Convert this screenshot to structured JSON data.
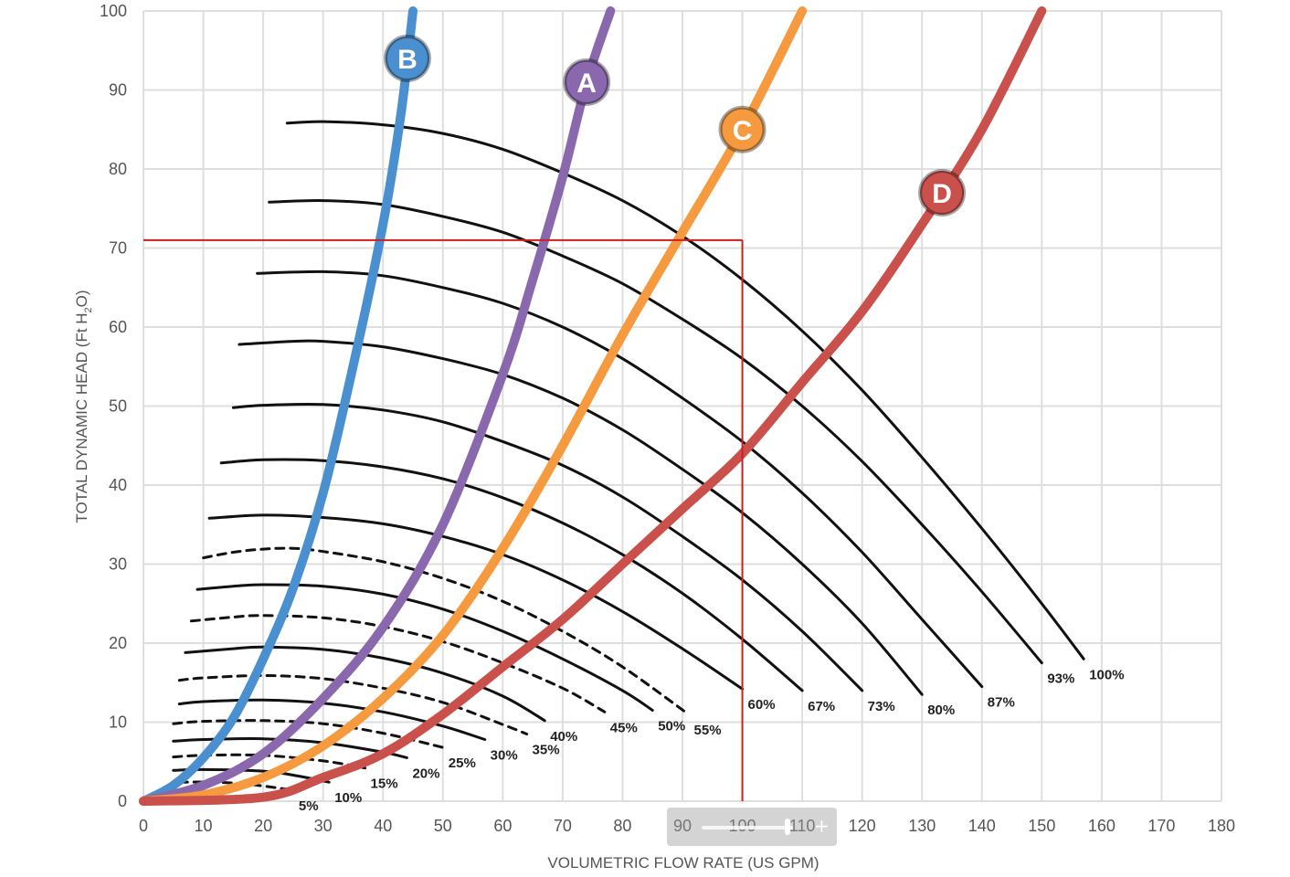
{
  "chart_data": {
    "type": "line",
    "xlabel": "VOLUMETRIC FLOW RATE (US GPM)",
    "ylabel_main": "TOTAL DYNAMIC HEAD (Ft H",
    "ylabel_sub": "2",
    "ylabel_end": "O)",
    "xlim": [
      0,
      180
    ],
    "ylim": [
      0,
      100
    ],
    "x_ticks": [
      "0",
      "10",
      "20",
      "30",
      "40",
      "50",
      "60",
      "70",
      "80",
      "90",
      "100",
      "110",
      "120",
      "130",
      "140",
      "150",
      "160",
      "170",
      "180"
    ],
    "y_ticks": [
      "0",
      "10",
      "20",
      "30",
      "40",
      "50",
      "60",
      "70",
      "80",
      "90",
      "100"
    ],
    "grid": true,
    "system_curves": [
      {
        "name": "B",
        "color": "#4a90d0",
        "points": [
          [
            0,
            0
          ],
          [
            5,
            2
          ],
          [
            10,
            5.5
          ],
          [
            15,
            10.5
          ],
          [
            20,
            18
          ],
          [
            25,
            27
          ],
          [
            30,
            39
          ],
          [
            35,
            55
          ],
          [
            40,
            73
          ],
          [
            43,
            87
          ],
          [
            45,
            100
          ]
        ]
      },
      {
        "name": "A",
        "color": "#8a68ad",
        "points": [
          [
            0,
            0
          ],
          [
            10,
            2
          ],
          [
            20,
            6
          ],
          [
            30,
            13
          ],
          [
            40,
            22
          ],
          [
            50,
            35
          ],
          [
            60,
            54
          ],
          [
            65,
            66
          ],
          [
            70,
            79
          ],
          [
            74,
            91
          ],
          [
            78,
            100
          ]
        ]
      },
      {
        "name": "C",
        "color": "#f59a3e",
        "points": [
          [
            0,
            0
          ],
          [
            10,
            0.8
          ],
          [
            20,
            3
          ],
          [
            30,
            7
          ],
          [
            40,
            13
          ],
          [
            50,
            21
          ],
          [
            60,
            32
          ],
          [
            70,
            45
          ],
          [
            80,
            59
          ],
          [
            90,
            72
          ],
          [
            100,
            85
          ],
          [
            110,
            100
          ]
        ]
      },
      {
        "name": "D",
        "color": "#c9504b",
        "points": [
          [
            0,
            0
          ],
          [
            20,
            0.5
          ],
          [
            30,
            3
          ],
          [
            40,
            6
          ],
          [
            50,
            11
          ],
          [
            60,
            17
          ],
          [
            70,
            23
          ],
          [
            80,
            30
          ],
          [
            90,
            37
          ],
          [
            100,
            44
          ],
          [
            110,
            53
          ],
          [
            120,
            62
          ],
          [
            130,
            73
          ],
          [
            140,
            85
          ],
          [
            150,
            100
          ]
        ]
      }
    ],
    "speed_curves": [
      {
        "name": "100%",
        "dashed": false,
        "shutoff": 85.8,
        "points": [
          [
            24,
            85.8
          ],
          [
            30,
            86.0
          ],
          [
            40,
            85.6
          ],
          [
            50,
            84.5
          ],
          [
            60,
            82.5
          ],
          [
            70,
            79.5
          ],
          [
            80,
            76
          ],
          [
            90,
            71.5
          ],
          [
            100,
            66
          ],
          [
            110,
            59.5
          ],
          [
            120,
            52
          ],
          [
            130,
            43.5
          ],
          [
            140,
            34.5
          ],
          [
            150,
            25
          ],
          [
            157,
            18
          ]
        ]
      },
      {
        "name": "93%",
        "dashed": false,
        "shutoff": 75.8,
        "points": [
          [
            21,
            75.8
          ],
          [
            30,
            76.0
          ],
          [
            40,
            75.5
          ],
          [
            50,
            74
          ],
          [
            60,
            72
          ],
          [
            70,
            69
          ],
          [
            80,
            65.5
          ],
          [
            90,
            61
          ],
          [
            100,
            56
          ],
          [
            110,
            50
          ],
          [
            120,
            43
          ],
          [
            130,
            35
          ],
          [
            140,
            26.5
          ],
          [
            150,
            17.5
          ]
        ]
      },
      {
        "name": "87%",
        "dashed": false,
        "shutoff": 66.8,
        "points": [
          [
            19,
            66.8
          ],
          [
            30,
            67.0
          ],
          [
            40,
            66.5
          ],
          [
            50,
            65
          ],
          [
            60,
            63
          ],
          [
            70,
            60
          ],
          [
            80,
            56
          ],
          [
            90,
            51
          ],
          [
            100,
            45.5
          ],
          [
            110,
            39
          ],
          [
            120,
            31.5
          ],
          [
            130,
            23
          ],
          [
            140,
            14.5
          ]
        ]
      },
      {
        "name": "80%",
        "dashed": false,
        "shutoff": 57.8,
        "points": [
          [
            16,
            57.8
          ],
          [
            25,
            58.2
          ],
          [
            30,
            58.2
          ],
          [
            40,
            57.5
          ],
          [
            50,
            56
          ],
          [
            60,
            54
          ],
          [
            70,
            51
          ],
          [
            80,
            47
          ],
          [
            90,
            42
          ],
          [
            100,
            36.5
          ],
          [
            110,
            30
          ],
          [
            120,
            22.5
          ],
          [
            130,
            13.5
          ]
        ]
      },
      {
        "name": "73%",
        "dashed": false,
        "shutoff": 49.8,
        "points": [
          [
            15,
            49.8
          ],
          [
            20,
            50.1
          ],
          [
            30,
            50.2
          ],
          [
            40,
            49.5
          ],
          [
            50,
            48
          ],
          [
            60,
            45.5
          ],
          [
            70,
            42.5
          ],
          [
            80,
            38.5
          ],
          [
            90,
            33.5
          ],
          [
            100,
            28
          ],
          [
            110,
            21.5
          ],
          [
            120,
            14
          ]
        ]
      },
      {
        "name": "67%",
        "dashed": false,
        "shutoff": 42.8,
        "points": [
          [
            13,
            42.8
          ],
          [
            20,
            43.2
          ],
          [
            30,
            43.1
          ],
          [
            40,
            42.3
          ],
          [
            50,
            40.8
          ],
          [
            60,
            38.4
          ],
          [
            70,
            35.2
          ],
          [
            80,
            31.2
          ],
          [
            90,
            26.3
          ],
          [
            100,
            20.5
          ],
          [
            110,
            14
          ]
        ]
      },
      {
        "name": "60%",
        "dashed": false,
        "shutoff": 35.8,
        "points": [
          [
            11,
            35.8
          ],
          [
            20,
            36.2
          ],
          [
            30,
            35.9
          ],
          [
            40,
            35.1
          ],
          [
            50,
            33.5
          ],
          [
            60,
            31.2
          ],
          [
            70,
            28
          ],
          [
            80,
            24
          ],
          [
            90,
            19.3
          ],
          [
            100,
            14.2
          ]
        ]
      },
      {
        "name": "55%",
        "dashed": true,
        "shutoff": 30.8,
        "points": [
          [
            10,
            30.8
          ],
          [
            15,
            31.5
          ],
          [
            20,
            31.9
          ],
          [
            25,
            32.0
          ],
          [
            30,
            31.6
          ],
          [
            40,
            30.3
          ],
          [
            50,
            28.2
          ],
          [
            60,
            25.3
          ],
          [
            70,
            21.5
          ],
          [
            80,
            17
          ],
          [
            91,
            11
          ]
        ]
      },
      {
        "name": "50%",
        "dashed": false,
        "shutoff": 26.8,
        "points": [
          [
            9,
            26.8
          ],
          [
            15,
            27.2
          ],
          [
            20,
            27.4
          ],
          [
            30,
            27.2
          ],
          [
            40,
            26.2
          ],
          [
            50,
            24.3
          ],
          [
            60,
            21.5
          ],
          [
            70,
            18
          ],
          [
            80,
            14
          ],
          [
            85,
            11.5
          ]
        ]
      },
      {
        "name": "45%",
        "dashed": true,
        "shutoff": 22.8,
        "points": [
          [
            8,
            22.8
          ],
          [
            15,
            23.3
          ],
          [
            20,
            23.5
          ],
          [
            30,
            23.2
          ],
          [
            40,
            22.1
          ],
          [
            50,
            20.2
          ],
          [
            60,
            17.5
          ],
          [
            70,
            14.3
          ],
          [
            77,
            11.3
          ]
        ]
      },
      {
        "name": "40%",
        "dashed": false,
        "shutoff": 18.8,
        "points": [
          [
            7,
            18.8
          ],
          [
            15,
            19.3
          ],
          [
            20,
            19.5
          ],
          [
            30,
            19.2
          ],
          [
            40,
            18.1
          ],
          [
            50,
            16.2
          ],
          [
            60,
            13.3
          ],
          [
            67,
            10.2
          ]
        ]
      },
      {
        "name": "35%",
        "dashed": true,
        "shutoff": 15.3,
        "points": [
          [
            6,
            15.3
          ],
          [
            10,
            15.6
          ],
          [
            20,
            15.9
          ],
          [
            30,
            15.5
          ],
          [
            40,
            14.3
          ],
          [
            50,
            12.5
          ],
          [
            60,
            9.7
          ],
          [
            64,
            8.5
          ]
        ]
      },
      {
        "name": "30%",
        "dashed": false,
        "shutoff": 12.3,
        "points": [
          [
            6,
            12.3
          ],
          [
            10,
            12.6
          ],
          [
            20,
            12.8
          ],
          [
            30,
            12.4
          ],
          [
            40,
            11.3
          ],
          [
            50,
            9.5
          ],
          [
            57,
            7.8
          ]
        ]
      },
      {
        "name": "25%",
        "dashed": true,
        "shutoff": 9.8,
        "points": [
          [
            5,
            9.8
          ],
          [
            10,
            10.1
          ],
          [
            20,
            10.2
          ],
          [
            30,
            9.8
          ],
          [
            40,
            8.6
          ],
          [
            50,
            6.8
          ]
        ]
      },
      {
        "name": "20%",
        "dashed": false,
        "shutoff": 7.6,
        "points": [
          [
            5,
            7.6
          ],
          [
            10,
            7.8
          ],
          [
            20,
            7.9
          ],
          [
            30,
            7.4
          ],
          [
            40,
            6.2
          ],
          [
            44,
            5.5
          ]
        ]
      },
      {
        "name": "15%",
        "dashed": true,
        "shutoff": 5.6,
        "points": [
          [
            5,
            5.6
          ],
          [
            10,
            5.8
          ],
          [
            20,
            5.8
          ],
          [
            30,
            5.1
          ],
          [
            37,
            4.2
          ]
        ]
      },
      {
        "name": "10%",
        "dashed": false,
        "shutoff": 3.9,
        "points": [
          [
            5,
            3.9
          ],
          [
            10,
            4.0
          ],
          [
            20,
            3.8
          ],
          [
            25,
            3.3
          ],
          [
            31,
            2.4
          ]
        ]
      },
      {
        "name": "5%",
        "dashed": true,
        "shutoff": 2.4,
        "points": [
          [
            6,
            2.4
          ],
          [
            12,
            2.4
          ],
          [
            18,
            2.1
          ],
          [
            25,
            1.4
          ]
        ]
      }
    ],
    "operating_point": {
      "x": 100,
      "y": 71,
      "color": "#cc1f1f"
    }
  },
  "zoom_control": {
    "plus_label": "+",
    "level_fraction": 0.9
  }
}
